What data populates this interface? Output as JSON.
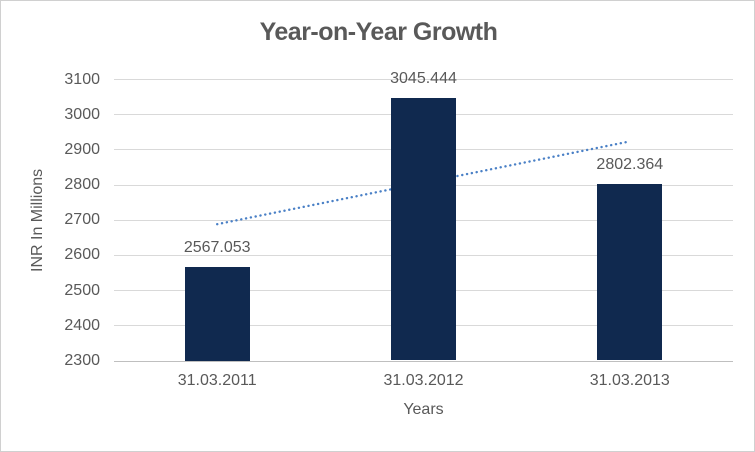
{
  "chart_data": {
    "type": "bar",
    "title": "Year-on-Year Growth",
    "xlabel": "Years",
    "ylabel": "INR In Millions",
    "categories": [
      "31.03.2011",
      "31.03.2012",
      "31.03.2013"
    ],
    "values": [
      2567.053,
      3045.444,
      2802.364
    ],
    "data_labels": [
      "2567.053",
      "3045.444",
      "2802.364"
    ],
    "ylim": [
      2300,
      3100
    ],
    "yticks": [
      2300,
      2400,
      2500,
      2600,
      2700,
      2800,
      2900,
      3000,
      3100
    ],
    "grid": true,
    "legend": "none",
    "bar_color": "#10294f",
    "text_color": "#595959",
    "gridline_color": "#d9d9d9",
    "axis_line_color": "#bfbfbf",
    "trendline": {
      "style": "dotted",
      "color": "#4a80c6",
      "endpoint_values": [
        2687.3,
        2922.6
      ],
      "behind_bars": true
    }
  }
}
